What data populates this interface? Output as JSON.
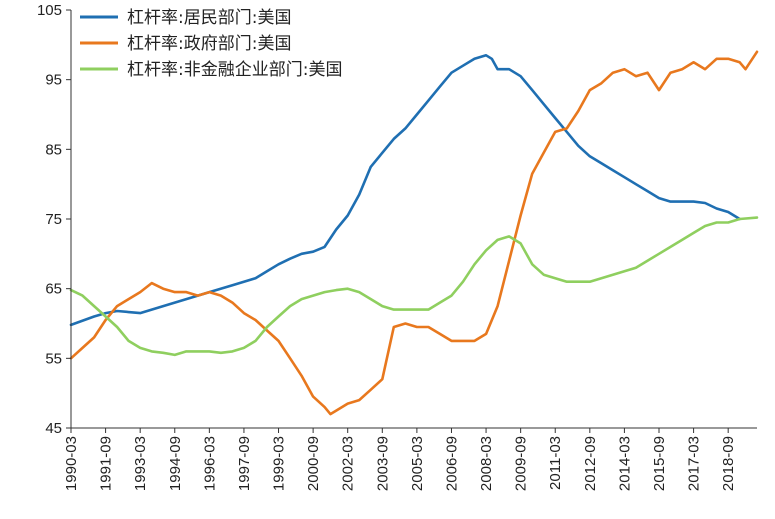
{
  "chart_data": {
    "type": "line",
    "title": "",
    "xlabel": "",
    "ylabel": "",
    "ylim": [
      45,
      105
    ],
    "yticks": [
      45,
      55,
      65,
      75,
      85,
      95,
      105
    ],
    "xlim": [
      "1990-03",
      "2019-12"
    ],
    "xticks": [
      "1990-03",
      "1991-09",
      "1993-03",
      "1994-09",
      "1996-03",
      "1997-09",
      "1999-03",
      "2000-09",
      "2002-03",
      "2003-09",
      "2005-03",
      "2006-09",
      "2008-03",
      "2009-09",
      "2011-03",
      "2012-09",
      "2014-03",
      "2015-09",
      "2017-03",
      "2018-09"
    ],
    "grid": false,
    "legend_position": "top-left",
    "series": [
      {
        "name": "杠杆率:居民部门:美国",
        "color": "#1f6fb2",
        "points": [
          [
            "1990-03",
            59.8
          ],
          [
            "1991-03",
            61.0
          ],
          [
            "1991-09",
            61.5
          ],
          [
            "1992-03",
            61.8
          ],
          [
            "1993-03",
            61.5
          ],
          [
            "1994-03",
            62.5
          ],
          [
            "1995-03",
            63.5
          ],
          [
            "1996-03",
            64.5
          ],
          [
            "1997-03",
            65.5
          ],
          [
            "1998-03",
            66.5
          ],
          [
            "1998-09",
            67.5
          ],
          [
            "1999-03",
            68.5
          ],
          [
            "1999-09",
            69.3
          ],
          [
            "2000-03",
            70.0
          ],
          [
            "2000-09",
            70.3
          ],
          [
            "2001-03",
            71.0
          ],
          [
            "2001-09",
            73.5
          ],
          [
            "2002-03",
            75.5
          ],
          [
            "2002-09",
            78.5
          ],
          [
            "2003-03",
            82.5
          ],
          [
            "2003-09",
            84.5
          ],
          [
            "2004-03",
            86.5
          ],
          [
            "2004-09",
            88.0
          ],
          [
            "2005-03",
            90.0
          ],
          [
            "2005-09",
            92.0
          ],
          [
            "2006-03",
            94.0
          ],
          [
            "2006-09",
            96.0
          ],
          [
            "2007-03",
            97.0
          ],
          [
            "2007-09",
            98.0
          ],
          [
            "2008-03",
            98.5
          ],
          [
            "2008-06",
            98.0
          ],
          [
            "2008-09",
            96.5
          ],
          [
            "2009-03",
            96.5
          ],
          [
            "2009-09",
            95.5
          ],
          [
            "2010-03",
            93.5
          ],
          [
            "2010-09",
            91.5
          ],
          [
            "2011-03",
            89.5
          ],
          [
            "2011-09",
            87.5
          ],
          [
            "2012-03",
            85.5
          ],
          [
            "2012-09",
            84.0
          ],
          [
            "2013-03",
            83.0
          ],
          [
            "2013-09",
            82.0
          ],
          [
            "2014-03",
            81.0
          ],
          [
            "2014-09",
            80.0
          ],
          [
            "2015-03",
            79.0
          ],
          [
            "2015-09",
            78.0
          ],
          [
            "2016-03",
            77.5
          ],
          [
            "2016-09",
            77.5
          ],
          [
            "2017-03",
            77.5
          ],
          [
            "2017-09",
            77.3
          ],
          [
            "2018-03",
            76.5
          ],
          [
            "2018-09",
            76.0
          ],
          [
            "2019-03",
            75.0
          ]
        ]
      },
      {
        "name": "杠杆率:政府部门:美国",
        "color": "#e8781e",
        "points": [
          [
            "1990-03",
            55.0
          ],
          [
            "1990-09",
            56.5
          ],
          [
            "1991-03",
            58.0
          ],
          [
            "1991-09",
            60.5
          ],
          [
            "1992-03",
            62.5
          ],
          [
            "1992-09",
            63.5
          ],
          [
            "1993-03",
            64.5
          ],
          [
            "1993-09",
            65.8
          ],
          [
            "1994-03",
            65.0
          ],
          [
            "1994-09",
            64.5
          ],
          [
            "1995-03",
            64.5
          ],
          [
            "1995-09",
            64.0
          ],
          [
            "1996-03",
            64.5
          ],
          [
            "1996-09",
            64.0
          ],
          [
            "1997-03",
            63.0
          ],
          [
            "1997-09",
            61.5
          ],
          [
            "1998-03",
            60.5
          ],
          [
            "1998-09",
            59.0
          ],
          [
            "1999-03",
            57.5
          ],
          [
            "1999-09",
            55.0
          ],
          [
            "2000-03",
            52.5
          ],
          [
            "2000-09",
            49.5
          ],
          [
            "2001-03",
            48.0
          ],
          [
            "2001-06",
            47.0
          ],
          [
            "2001-09",
            47.5
          ],
          [
            "2002-03",
            48.5
          ],
          [
            "2002-09",
            49.0
          ],
          [
            "2003-03",
            50.5
          ],
          [
            "2003-09",
            52.0
          ],
          [
            "2004-03",
            59.5
          ],
          [
            "2004-09",
            60.0
          ],
          [
            "2005-03",
            59.5
          ],
          [
            "2005-09",
            59.5
          ],
          [
            "2006-03",
            58.5
          ],
          [
            "2006-09",
            57.5
          ],
          [
            "2007-03",
            57.5
          ],
          [
            "2007-09",
            57.5
          ],
          [
            "2008-03",
            58.5
          ],
          [
            "2008-09",
            62.5
          ],
          [
            "2009-03",
            69.0
          ],
          [
            "2009-09",
            75.5
          ],
          [
            "2010-03",
            81.5
          ],
          [
            "2010-09",
            84.5
          ],
          [
            "2011-03",
            87.5
          ],
          [
            "2011-09",
            88.0
          ],
          [
            "2012-03",
            90.5
          ],
          [
            "2012-09",
            93.5
          ],
          [
            "2013-03",
            94.5
          ],
          [
            "2013-09",
            96.0
          ],
          [
            "2014-03",
            96.5
          ],
          [
            "2014-09",
            95.5
          ],
          [
            "2015-03",
            96.0
          ],
          [
            "2015-09",
            93.5
          ],
          [
            "2016-03",
            96.0
          ],
          [
            "2016-09",
            96.5
          ],
          [
            "2017-03",
            97.5
          ],
          [
            "2017-09",
            96.5
          ],
          [
            "2018-03",
            98.0
          ],
          [
            "2018-09",
            98.0
          ],
          [
            "2019-03",
            97.5
          ],
          [
            "2019-06",
            96.5
          ],
          [
            "2019-12",
            99.0
          ]
        ]
      },
      {
        "name": "杠杆率:非金融企业部门:美国",
        "color": "#8fcf5f",
        "points": [
          [
            "1990-03",
            64.8
          ],
          [
            "1990-09",
            64.0
          ],
          [
            "1991-03",
            62.5
          ],
          [
            "1991-09",
            61.0
          ],
          [
            "1992-03",
            59.5
          ],
          [
            "1992-09",
            57.5
          ],
          [
            "1993-03",
            56.5
          ],
          [
            "1993-09",
            56.0
          ],
          [
            "1994-03",
            55.8
          ],
          [
            "1994-09",
            55.5
          ],
          [
            "1995-03",
            56.0
          ],
          [
            "1995-09",
            56.0
          ],
          [
            "1996-03",
            56.0
          ],
          [
            "1996-09",
            55.8
          ],
          [
            "1997-03",
            56.0
          ],
          [
            "1997-09",
            56.5
          ],
          [
            "1998-03",
            57.5
          ],
          [
            "1998-09",
            59.5
          ],
          [
            "1999-03",
            61.0
          ],
          [
            "1999-09",
            62.5
          ],
          [
            "2000-03",
            63.5
          ],
          [
            "2000-09",
            64.0
          ],
          [
            "2001-03",
            64.5
          ],
          [
            "2001-09",
            64.8
          ],
          [
            "2002-03",
            65.0
          ],
          [
            "2002-09",
            64.5
          ],
          [
            "2003-03",
            63.5
          ],
          [
            "2003-09",
            62.5
          ],
          [
            "2004-03",
            62.0
          ],
          [
            "2004-09",
            62.0
          ],
          [
            "2005-03",
            62.0
          ],
          [
            "2005-09",
            62.0
          ],
          [
            "2006-03",
            63.0
          ],
          [
            "2006-09",
            64.0
          ],
          [
            "2007-03",
            66.0
          ],
          [
            "2007-09",
            68.5
          ],
          [
            "2008-03",
            70.5
          ],
          [
            "2008-09",
            72.0
          ],
          [
            "2009-03",
            72.5
          ],
          [
            "2009-09",
            71.5
          ],
          [
            "2010-03",
            68.5
          ],
          [
            "2010-09",
            67.0
          ],
          [
            "2011-03",
            66.5
          ],
          [
            "2011-09",
            66.0
          ],
          [
            "2012-03",
            66.0
          ],
          [
            "2012-09",
            66.0
          ],
          [
            "2013-03",
            66.5
          ],
          [
            "2013-09",
            67.0
          ],
          [
            "2014-03",
            67.5
          ],
          [
            "2014-09",
            68.0
          ],
          [
            "2015-03",
            69.0
          ],
          [
            "2015-09",
            70.0
          ],
          [
            "2016-03",
            71.0
          ],
          [
            "2016-09",
            72.0
          ],
          [
            "2017-03",
            73.0
          ],
          [
            "2017-09",
            74.0
          ],
          [
            "2018-03",
            74.5
          ],
          [
            "2018-09",
            74.5
          ],
          [
            "2019-03",
            75.0
          ],
          [
            "2019-12",
            75.2
          ]
        ]
      }
    ]
  }
}
